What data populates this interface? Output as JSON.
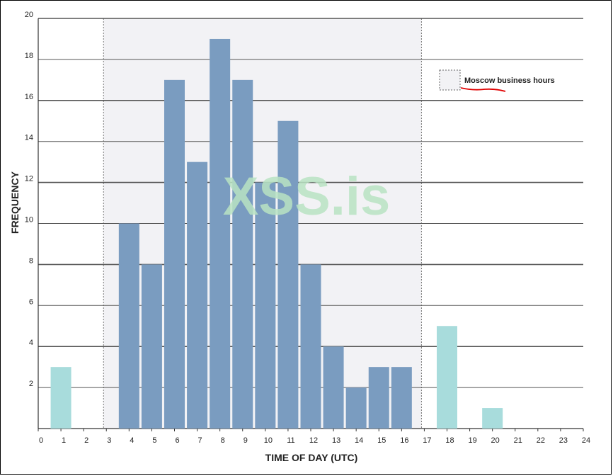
{
  "chart_data": {
    "type": "bar",
    "title": "",
    "xlabel": "TIME OF DAY (UTC)",
    "ylabel": "FREQUENCY",
    "ylim": [
      0,
      20
    ],
    "xlim": [
      0,
      24
    ],
    "x_ticks": [
      "0",
      "1",
      "2",
      "3",
      "4",
      "5",
      "6",
      "7",
      "8",
      "9",
      "10",
      "11",
      "12",
      "13",
      "14",
      "15",
      "16",
      "17",
      "18",
      "19",
      "20",
      "21",
      "22",
      "23",
      "24"
    ],
    "y_ticks": [
      "2",
      "4",
      "6",
      "8",
      "10",
      "12",
      "14",
      "16",
      "18",
      "20"
    ],
    "grid": "horizontal",
    "series": [
      {
        "x": [
          1,
          4,
          5,
          6,
          7,
          8,
          9,
          10,
          11,
          12,
          13,
          14,
          15,
          16,
          18,
          20
        ],
        "values": [
          3,
          10,
          8,
          17,
          13,
          19,
          17,
          12,
          15,
          8,
          4,
          2,
          3,
          3,
          5,
          1
        ]
      }
    ],
    "highlight_region": {
      "label": "Moscow business hours",
      "x_range": [
        3,
        17
      ]
    },
    "legend": {
      "placement": "top-right",
      "entries": [
        "Moscow business hours"
      ]
    },
    "colors": {
      "in_hours": "#7a9cc0",
      "out_of_hours": "#a8dcdc",
      "region_fill": "#f2f2f5",
      "grid": "#555555"
    }
  },
  "watermark": "XSS.is"
}
